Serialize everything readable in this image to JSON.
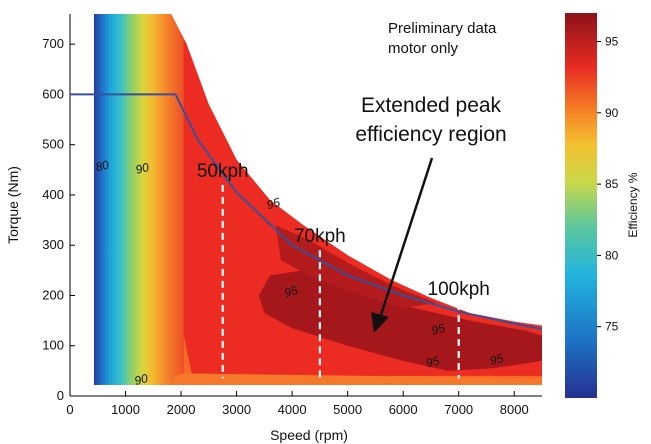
{
  "chart_data": {
    "type": "heatmap",
    "title": "",
    "xlabel": "Speed (rpm)",
    "ylabel": "Torque (Nm)",
    "xlim": [
      0,
      8500
    ],
    "ylim": [
      0,
      760
    ],
    "x_ticks": [
      0,
      1000,
      2000,
      3000,
      4000,
      5000,
      6000,
      7000,
      8000
    ],
    "y_ticks": [
      0,
      100,
      200,
      300,
      400,
      500,
      600,
      700
    ],
    "x_tick_labels": [
      "0",
      "1000",
      "2000",
      "3000",
      "4000",
      "5000",
      "6000",
      "7000",
      "8000"
    ],
    "y_tick_labels": [
      "0",
      "100",
      "200",
      "300",
      "400",
      "500",
      "600",
      "700"
    ],
    "colorbar": {
      "label": "Efficiency %",
      "range": [
        70,
        97
      ],
      "ticks": [
        75,
        80,
        85,
        90,
        95
      ],
      "tick_labels": [
        "75",
        "80",
        "85",
        "90",
        "95"
      ]
    },
    "contour_labels": [
      {
        "text": "80",
        "x": 600,
        "y": 450
      },
      {
        "text": "90",
        "x": 1320,
        "y": 445
      },
      {
        "text": "90",
        "x": 1300,
        "y": 25
      },
      {
        "text": "95",
        "x": 3680,
        "y": 375
      },
      {
        "text": "95",
        "x": 4000,
        "y": 200
      },
      {
        "text": "95",
        "x": 6650,
        "y": 125
      },
      {
        "text": "95",
        "x": 6550,
        "y": 60
      },
      {
        "text": "95",
        "x": 7700,
        "y": 65
      }
    ],
    "max_torque_curve": {
      "x": [
        0,
        1900,
        2300,
        3000,
        4000,
        5000,
        6000,
        7000,
        8000,
        8500
      ],
      "y": [
        600,
        600,
        510,
        405,
        300,
        240,
        200,
        168,
        144,
        133
      ]
    },
    "speed_markers": [
      {
        "label": "50kph",
        "x": 2750,
        "y_top": 420
      },
      {
        "label": "70kph",
        "x": 4500,
        "y_top": 290
      },
      {
        "label": "100kph",
        "x": 7000,
        "y_top": 185
      }
    ],
    "annotations": {
      "note_line1": "Preliminary data",
      "note_line2": "motor only",
      "region_line1": "Extended peak",
      "region_line2": "efficiency region"
    }
  }
}
